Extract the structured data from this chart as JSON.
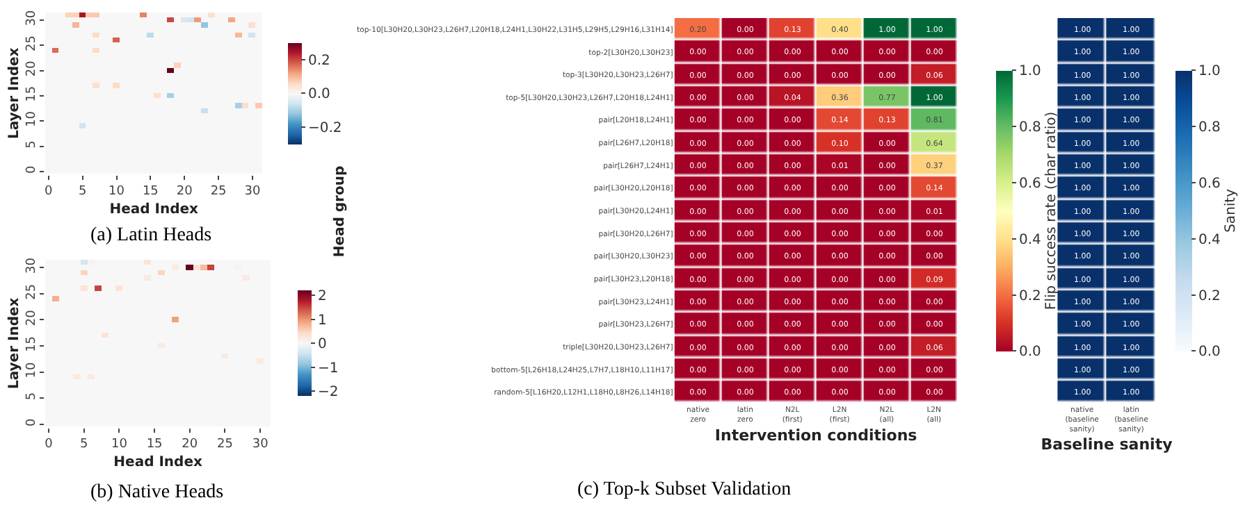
{
  "chart_data": [
    {
      "type": "heatmap",
      "title": "(a) Latin Heads",
      "xlabel": "Head Index",
      "ylabel": "Layer Index",
      "categories": [
        "0",
        null,
        null,
        null,
        null,
        "5",
        null,
        null,
        null,
        null,
        "10",
        null,
        null,
        null,
        null,
        "15",
        null,
        null,
        null,
        null,
        "20",
        null,
        null,
        null,
        null,
        "25",
        null,
        null,
        null,
        null,
        "30",
        null
      ],
      "y_categories": [
        null,
        "30",
        null,
        null,
        null,
        null,
        "25",
        null,
        null,
        null,
        null,
        "20",
        null,
        null,
        null,
        null,
        "15",
        null,
        null,
        null,
        null,
        "10",
        null,
        null,
        null,
        null,
        "5",
        null,
        null,
        null,
        null,
        "0"
      ],
      "clim": [
        -0.3,
        0.3
      ],
      "cticks": [
        {
          "value": -0.2,
          "label": "−0.2"
        },
        {
          "value": 0,
          "label": "0.0"
        },
        {
          "value": 0.2,
          "label": "0.2"
        }
      ],
      "cells": [
        [
          0,
          0,
          0,
          0.07,
          0.07,
          0.25,
          0.08,
          0.08,
          0,
          0,
          0,
          0,
          0,
          0,
          0.15,
          0,
          0,
          0,
          0,
          0,
          0,
          0,
          0,
          0,
          0.05,
          0,
          0,
          0,
          0,
          0,
          0,
          0
        ],
        [
          0,
          0,
          0,
          0,
          0,
          0,
          0,
          0,
          0,
          0,
          0,
          0,
          0,
          0,
          0,
          0,
          0,
          0,
          0.2,
          0,
          -0.05,
          -0.06,
          0.13,
          0,
          0,
          0,
          0,
          0.12,
          0,
          0,
          0,
          0
        ],
        [
          0,
          0,
          0,
          0,
          0.1,
          0,
          0,
          0,
          0,
          0,
          0,
          0,
          0,
          0,
          0,
          0,
          0,
          0,
          0,
          0,
          0,
          0,
          0,
          -0.12,
          0,
          0,
          0,
          0,
          0,
          0,
          0.05,
          0
        ],
        [
          0,
          0,
          0,
          0,
          0,
          0,
          0,
          0,
          0,
          0,
          0,
          0,
          0,
          0,
          0,
          0,
          0,
          0,
          0,
          0,
          0,
          0,
          0,
          0,
          0,
          0,
          0,
          0,
          0,
          0,
          0,
          0
        ],
        [
          0,
          0,
          0,
          0,
          0,
          0,
          0,
          0.06,
          0,
          0,
          0,
          0,
          0,
          0,
          0,
          -0.08,
          0,
          0,
          0,
          0,
          0,
          0,
          0,
          0,
          0,
          0,
          0,
          0,
          0.1,
          0,
          -0.06,
          0
        ],
        [
          0,
          0,
          0,
          0,
          0,
          0,
          0,
          0,
          0,
          0,
          0.18,
          0,
          0,
          0,
          0,
          0,
          0,
          0,
          0,
          0,
          0,
          0,
          0,
          0,
          0,
          0,
          0,
          0,
          0,
          0,
          0,
          0
        ],
        [
          0,
          0,
          0,
          0,
          0,
          0,
          0,
          0,
          0,
          0,
          0,
          0,
          0,
          0,
          0,
          0,
          0,
          0,
          0,
          0,
          0,
          0,
          0,
          0,
          0,
          0,
          0,
          0,
          0,
          0,
          0,
          0
        ],
        [
          0,
          0.17,
          0,
          0,
          0,
          0,
          0,
          0.06,
          0,
          0,
          0,
          0,
          0,
          0,
          0,
          0,
          0,
          0,
          0,
          0,
          0,
          0,
          0,
          0,
          0,
          0,
          0,
          0,
          0,
          0,
          0,
          0
        ],
        [
          0,
          0,
          0,
          0,
          0,
          0,
          0,
          0,
          0,
          0,
          0,
          0,
          0,
          0,
          0,
          0,
          0,
          0,
          0,
          0,
          0,
          0,
          0,
          0,
          0,
          0,
          0,
          0,
          0,
          0,
          0,
          0
        ],
        [
          0,
          0,
          0,
          0,
          0,
          0,
          0,
          0,
          0,
          0,
          0,
          0,
          0,
          0,
          0,
          0,
          0,
          0,
          0,
          0,
          0,
          0,
          0,
          0,
          0,
          0,
          0,
          0,
          0,
          0,
          0,
          0
        ],
        [
          0,
          0,
          0,
          0,
          0,
          0,
          0,
          0,
          0,
          0,
          0,
          0,
          0,
          0,
          0,
          0,
          0,
          0,
          0,
          0.07,
          0,
          0,
          0,
          0,
          0,
          0,
          0,
          0,
          0,
          0,
          0,
          0
        ],
        [
          0,
          0,
          0,
          0,
          0,
          0,
          0,
          0,
          0,
          0,
          0,
          0,
          0,
          0,
          0,
          0,
          0,
          0,
          0.3,
          0,
          0,
          0,
          0,
          0,
          0,
          0,
          0,
          0,
          0,
          0,
          0,
          0
        ],
        [
          0,
          0,
          0,
          0,
          0,
          0,
          0,
          0,
          0,
          0,
          0,
          0,
          0,
          0,
          0,
          0,
          0,
          0,
          0,
          0,
          0,
          0,
          0,
          0,
          0,
          0,
          0,
          0,
          0,
          0,
          0,
          0
        ],
        [
          0,
          0,
          0,
          0,
          0,
          0,
          0,
          0,
          0,
          0,
          0,
          0,
          0,
          0,
          0,
          0,
          0,
          0,
          0,
          0,
          0,
          0,
          0,
          0,
          0,
          0,
          0,
          0,
          0,
          0,
          0,
          0
        ],
        [
          0,
          0,
          0,
          0,
          0,
          0,
          0,
          0.05,
          0,
          0,
          0.06,
          0,
          0,
          0,
          0,
          0,
          0,
          0,
          0,
          0,
          0,
          0,
          0,
          0,
          0,
          0,
          0,
          0,
          0,
          0,
          0,
          0
        ],
        [
          0,
          0,
          0,
          0,
          0,
          0,
          0,
          0,
          0,
          0,
          0,
          0,
          0,
          0,
          0,
          0,
          0,
          0,
          0,
          0,
          0,
          0,
          0,
          0,
          0,
          0,
          0,
          0,
          0,
          0,
          0,
          0
        ],
        [
          0,
          0,
          0,
          0,
          0,
          0,
          0,
          0,
          0,
          0,
          0,
          0,
          0,
          0,
          0,
          0,
          0.05,
          0,
          -0.1,
          0,
          0,
          0,
          0,
          0,
          0,
          0,
          0,
          0,
          0,
          0,
          0,
          0
        ],
        [
          0,
          0,
          0,
          0,
          0,
          0,
          0,
          0,
          0,
          0,
          0,
          0,
          0,
          0,
          0,
          0,
          0,
          0,
          0,
          0,
          0,
          0,
          0,
          0,
          0,
          0,
          0,
          0,
          0,
          0,
          0,
          0
        ],
        [
          0,
          0,
          0,
          0,
          0,
          0,
          0,
          0,
          0,
          0,
          0,
          0,
          0,
          0,
          0,
          0,
          0,
          0,
          0,
          0,
          0,
          0,
          0,
          0,
          0,
          0,
          0,
          0,
          -0.1,
          0.05,
          0,
          0.08
        ],
        [
          0,
          0,
          0,
          0,
          0,
          0,
          0,
          0,
          0,
          0,
          0,
          0,
          0,
          0,
          0,
          0,
          0,
          0,
          0,
          0,
          0,
          0,
          0,
          -0.07,
          0,
          0,
          0,
          0,
          0,
          0,
          0,
          0
        ],
        [
          0,
          0,
          0,
          0,
          0,
          0,
          0,
          0,
          0,
          0,
          0,
          0,
          0,
          0,
          0,
          0,
          0,
          0,
          0,
          0,
          0,
          0,
          0,
          0,
          0,
          0,
          0,
          0,
          0,
          0,
          0,
          0
        ],
        [
          0,
          0,
          0,
          0,
          0,
          0,
          0,
          0,
          0,
          0,
          0,
          0,
          0,
          0,
          0,
          0,
          0,
          0,
          0,
          0,
          0,
          0,
          0,
          0,
          0,
          0,
          0,
          0,
          0,
          0,
          0,
          0
        ],
        [
          0,
          0,
          0,
          0,
          0,
          -0.06,
          0,
          0,
          0,
          0,
          0,
          0,
          0,
          0,
          0,
          0,
          0,
          0,
          0,
          0,
          0,
          0,
          0,
          0,
          0,
          0,
          0,
          0,
          0,
          0,
          0,
          0
        ],
        [
          0,
          0,
          0,
          0,
          0,
          0,
          0,
          0,
          0,
          0,
          0,
          0,
          0,
          0,
          0,
          0,
          0,
          0,
          0,
          0,
          0,
          0,
          0,
          0,
          0,
          0,
          0,
          0,
          0,
          0,
          0,
          0
        ],
        [
          0,
          0,
          0,
          0,
          0,
          0,
          0,
          0,
          0,
          0,
          0,
          0,
          0,
          0,
          0,
          0,
          0,
          0,
          0,
          0,
          0,
          0,
          0,
          0,
          0,
          0,
          0,
          0,
          0,
          0,
          0,
          0
        ],
        [
          0,
          0,
          0,
          0,
          0,
          0,
          0,
          0,
          0,
          0,
          0,
          0,
          0,
          0,
          0,
          0,
          0,
          0,
          0,
          0,
          0,
          0,
          0,
          0,
          0,
          0,
          0,
          0,
          0,
          0,
          0,
          0
        ],
        [
          0,
          0,
          0,
          0,
          0,
          0,
          0,
          0,
          0,
          0,
          0,
          0,
          0,
          0,
          0,
          0,
          0,
          0,
          0,
          0,
          0,
          0,
          0,
          0,
          0,
          0,
          0,
          0,
          0,
          0,
          0,
          0
        ],
        [
          0,
          0,
          0,
          0,
          0,
          0,
          0,
          0,
          0,
          0,
          0,
          0,
          0,
          0,
          0,
          0,
          0,
          0,
          0,
          0,
          0,
          0,
          0,
          0,
          0,
          0,
          0,
          0,
          0,
          0,
          0,
          0
        ],
        [
          0,
          0,
          0,
          0,
          0,
          0,
          0,
          0,
          0,
          0,
          0,
          0,
          0,
          0,
          0,
          0,
          0,
          0,
          0,
          0,
          0,
          0,
          0,
          0,
          0,
          0,
          0,
          0,
          0,
          0,
          0,
          0
        ],
        [
          0,
          0,
          0,
          0,
          0,
          0,
          0,
          0,
          0,
          0,
          0,
          0,
          0,
          0,
          0,
          0,
          0,
          0,
          0,
          0,
          0,
          0,
          0,
          0,
          0,
          0,
          0,
          0,
          0,
          0,
          0,
          0
        ],
        [
          0,
          0,
          0,
          0,
          0,
          0,
          0,
          0,
          0,
          0,
          0,
          0,
          0,
          0,
          0,
          0,
          0,
          0,
          0,
          0,
          0,
          0,
          0,
          0,
          0,
          0,
          0,
          0,
          0,
          0,
          0,
          0
        ],
        [
          0,
          0,
          0,
          0,
          0,
          0,
          0,
          0,
          0,
          0,
          0,
          0,
          0,
          0,
          0,
          0,
          0,
          0,
          0,
          0,
          0,
          0,
          0,
          0,
          0,
          0,
          0,
          0,
          0,
          0,
          0,
          0
        ]
      ]
    },
    {
      "type": "heatmap",
      "title": "(b) Native Heads",
      "xlabel": "Head Index",
      "ylabel": "Layer Index",
      "categories": [
        "0",
        null,
        null,
        null,
        null,
        "5",
        null,
        null,
        null,
        null,
        "10",
        null,
        null,
        null,
        null,
        "15",
        null,
        null,
        null,
        null,
        "20",
        null,
        null,
        null,
        null,
        "25",
        null,
        null,
        null,
        null,
        "30",
        null
      ],
      "y_categories": [
        null,
        "30",
        null,
        null,
        null,
        null,
        "25",
        null,
        null,
        null,
        null,
        "20",
        null,
        null,
        null,
        null,
        "15",
        null,
        null,
        null,
        null,
        "10",
        null,
        null,
        null,
        null,
        "5",
        null,
        null,
        null,
        null,
        "0"
      ],
      "clim": [
        -2.2,
        2.2
      ],
      "cticks": [
        {
          "value": -2,
          "label": "−2"
        },
        {
          "value": -1,
          "label": "−1"
        },
        0,
        1,
        2
      ],
      "cells": [
        [
          0,
          0,
          0,
          0,
          0,
          -0.4,
          0.1,
          0,
          0,
          0,
          0,
          0,
          0,
          0,
          0.3,
          0,
          0,
          0,
          0,
          0,
          0,
          0,
          0,
          0,
          0,
          0,
          0,
          0,
          0,
          0,
          0,
          0
        ],
        [
          0,
          0,
          0,
          0,
          0,
          0,
          0,
          0,
          0,
          0,
          0,
          0,
          0,
          0,
          0,
          0,
          0,
          0,
          0.2,
          0,
          2.2,
          0.3,
          0.7,
          1.5,
          0,
          0,
          0,
          0.1,
          0,
          0,
          0,
          0
        ],
        [
          0,
          0,
          0,
          0,
          0,
          0.5,
          0,
          0,
          0,
          0,
          0,
          0,
          0,
          0,
          0,
          0,
          0.5,
          0,
          0,
          0,
          0,
          0,
          0,
          0,
          0,
          0,
          0,
          0,
          0,
          0,
          0,
          0
        ],
        [
          0,
          0,
          0,
          0,
          0,
          0,
          0,
          0,
          0,
          0,
          0,
          0,
          0,
          0,
          0.2,
          0,
          0,
          0,
          0,
          0,
          0,
          0,
          0,
          0,
          0,
          0,
          0,
          0,
          0.2,
          0,
          0,
          0
        ],
        [
          0,
          0,
          0,
          0,
          0,
          0,
          0,
          0,
          0,
          0,
          0,
          0,
          0,
          0,
          0,
          0,
          0,
          0,
          0,
          0,
          0,
          0,
          0,
          0,
          0,
          0,
          0,
          0,
          0,
          0,
          0,
          0
        ],
        [
          0,
          0,
          0,
          0,
          0,
          0.3,
          0,
          1.5,
          0,
          0,
          0.3,
          0,
          0,
          0,
          0,
          0,
          0,
          0,
          0,
          0,
          0,
          0,
          0,
          0,
          0,
          0,
          0,
          0,
          0,
          0,
          0,
          0
        ],
        [
          0,
          0,
          0,
          0,
          0,
          0,
          0,
          0,
          0,
          0,
          0,
          0,
          0,
          0,
          0,
          0,
          0,
          0,
          0,
          0,
          0,
          0,
          0,
          0,
          0,
          0,
          0,
          0,
          0,
          0,
          0,
          0
        ],
        [
          0,
          0.8,
          0,
          0,
          0,
          0,
          0,
          0,
          0,
          0,
          0,
          0,
          0,
          0,
          0,
          0,
          0,
          0,
          0,
          0,
          0,
          0,
          0,
          0,
          0,
          0,
          0,
          0,
          0,
          0,
          0,
          0
        ],
        [
          0,
          0,
          0,
          0,
          0,
          0,
          0,
          0,
          0,
          0,
          0,
          0,
          0,
          0,
          0,
          0,
          0,
          0,
          0,
          0,
          0,
          0,
          0,
          0,
          0,
          0,
          0,
          0,
          0,
          0,
          0,
          0
        ],
        [
          0,
          0,
          0,
          0,
          0,
          0,
          0,
          0,
          0,
          0,
          0,
          0,
          0,
          0,
          0,
          0,
          0,
          0,
          0,
          0,
          0,
          0,
          0,
          0,
          0,
          0,
          0,
          0,
          0,
          0,
          0,
          0
        ],
        [
          0,
          0,
          0,
          0,
          0,
          0,
          0,
          0,
          0,
          0,
          0,
          0,
          0,
          0,
          0,
          0,
          0,
          0,
          0,
          0,
          0,
          0,
          0,
          0,
          0,
          0,
          0,
          0,
          0,
          0,
          0,
          0
        ],
        [
          0,
          0,
          0,
          0,
          0,
          0,
          0,
          0,
          0,
          0,
          0,
          0,
          0,
          0,
          0,
          0,
          0,
          0,
          0.9,
          0,
          0,
          0,
          0,
          0,
          0,
          0,
          0,
          0,
          0,
          0,
          0,
          0
        ],
        [
          0,
          0,
          0,
          0,
          0,
          0,
          0,
          0,
          0,
          0,
          0,
          0,
          0,
          0,
          0,
          0,
          0,
          0,
          0,
          0,
          0,
          0,
          0,
          0,
          0,
          0,
          0,
          0,
          0,
          0,
          0,
          0
        ],
        [
          0,
          0,
          0,
          0,
          0,
          0,
          0,
          0,
          0,
          0,
          0,
          0,
          0,
          0,
          0,
          0,
          0,
          0,
          0,
          0,
          0,
          0,
          0,
          0,
          0,
          0,
          0,
          0,
          0,
          0,
          0,
          0
        ],
        [
          0,
          0,
          0,
          0,
          0,
          0,
          0,
          0,
          0.3,
          0,
          0,
          0,
          0,
          0,
          0,
          0,
          0,
          0,
          0,
          0,
          0,
          0,
          0,
          0,
          0,
          0,
          0,
          0,
          0,
          0,
          0,
          0
        ],
        [
          0,
          0,
          0,
          0,
          0,
          0,
          0,
          0,
          0,
          0,
          0,
          0,
          0,
          0,
          0,
          0,
          0,
          0,
          0,
          0,
          0,
          0,
          0,
          0,
          0,
          0,
          0,
          0,
          0,
          0,
          0,
          0
        ],
        [
          0,
          0,
          0,
          0,
          0,
          0,
          0,
          0,
          0,
          0,
          0,
          0,
          0,
          0,
          0,
          0,
          0.2,
          0,
          0,
          0,
          0,
          0,
          0,
          0,
          0,
          0,
          0,
          0,
          0,
          0,
          0,
          0
        ],
        [
          0,
          0,
          0,
          0,
          0,
          0,
          0,
          0,
          0,
          0,
          0,
          0,
          0,
          0,
          0,
          0,
          0,
          0,
          0,
          0,
          0,
          0,
          0,
          0,
          0,
          0,
          0,
          0,
          0,
          0,
          0,
          0
        ],
        [
          0,
          0,
          0,
          0,
          0,
          0,
          0,
          0,
          0,
          0,
          0,
          0,
          0,
          0,
          0,
          0,
          0,
          0,
          0,
          0,
          0,
          0,
          0,
          0,
          0,
          0.2,
          0,
          0,
          0,
          0,
          0,
          0
        ],
        [
          0,
          0,
          0,
          0,
          0,
          0,
          0,
          0,
          0,
          0,
          0,
          0,
          0,
          0,
          0,
          0,
          0,
          0,
          0,
          0,
          0,
          0,
          0,
          0,
          0,
          0,
          0,
          0,
          0,
          0,
          0.2,
          0
        ],
        [
          0,
          0,
          0,
          0,
          0,
          0,
          0,
          0,
          0,
          0,
          0,
          0,
          0,
          0,
          0,
          0,
          0,
          0,
          0,
          0,
          0,
          0,
          0,
          0,
          0,
          0,
          0,
          0,
          0,
          0,
          0,
          0
        ],
        [
          0,
          0,
          0,
          0,
          0,
          0,
          0,
          0,
          0,
          0,
          0,
          0,
          0,
          0,
          0,
          0,
          0,
          0,
          0,
          0,
          0,
          0,
          0,
          0,
          0,
          0,
          0,
          0,
          0,
          0,
          0,
          0
        ],
        [
          0,
          0,
          0,
          0,
          0.2,
          0,
          0.2,
          0,
          0,
          0,
          0,
          0,
          0,
          0,
          0,
          0,
          0,
          0,
          0,
          0,
          0,
          0,
          0,
          0,
          0,
          0,
          0,
          0,
          0,
          0,
          0,
          0
        ],
        [
          0,
          0,
          0,
          0,
          0,
          0,
          0,
          0,
          0,
          0,
          0,
          0,
          0,
          0,
          0,
          0,
          0,
          0,
          0,
          0,
          0,
          0,
          0,
          0,
          0,
          0,
          0,
          0,
          0,
          0,
          0,
          0
        ],
        [
          0,
          0,
          0,
          0,
          0,
          0,
          0,
          0,
          0,
          0,
          0,
          0,
          0,
          0,
          0,
          0,
          0,
          0,
          0,
          0,
          0,
          0,
          0,
          0,
          0,
          0,
          0,
          0,
          0,
          0,
          0,
          0
        ],
        [
          0,
          0,
          0,
          0,
          0,
          0,
          0,
          0,
          0,
          0,
          0,
          0,
          0,
          0,
          0,
          0,
          0,
          0,
          0,
          0,
          0,
          0,
          0,
          0,
          0,
          0,
          0,
          0,
          0,
          0,
          0,
          0
        ],
        [
          0,
          0,
          0,
          0,
          0,
          0,
          0,
          0,
          0,
          0,
          0,
          0,
          0,
          0,
          0,
          0,
          0,
          0,
          0,
          0,
          0,
          0,
          0,
          0,
          0,
          0,
          0,
          0,
          0,
          0,
          0,
          0
        ],
        [
          0,
          0,
          0,
          0,
          0,
          0,
          0,
          0,
          0,
          0,
          0,
          0,
          0,
          0,
          0,
          0,
          0,
          0,
          0,
          0,
          0,
          0,
          0,
          0,
          0,
          0,
          0,
          0,
          0,
          0,
          0,
          0
        ],
        [
          0,
          0,
          0,
          0,
          0,
          0,
          0,
          0,
          0,
          0,
          0,
          0,
          0,
          0,
          0,
          0,
          0,
          0,
          0,
          0,
          0,
          0,
          0,
          0,
          0,
          0,
          0,
          0,
          0,
          0,
          0,
          0
        ],
        [
          0,
          0,
          0,
          0,
          0,
          0,
          0,
          0,
          0,
          0,
          0,
          0,
          0,
          0,
          0,
          0,
          0,
          0,
          0,
          0,
          0,
          0,
          0,
          0,
          0,
          0,
          0,
          0,
          0,
          0,
          0,
          0
        ],
        [
          0,
          0,
          0,
          0,
          0,
          0,
          0,
          0,
          0,
          0,
          0,
          0,
          0,
          0,
          0,
          0,
          0,
          0,
          0,
          0,
          0,
          0,
          0,
          0,
          0,
          0,
          0,
          0,
          0,
          0,
          0,
          0
        ],
        [
          0,
          0,
          0,
          0,
          0,
          0,
          0,
          0,
          0,
          0,
          0,
          0,
          0,
          0,
          0,
          0,
          0,
          0,
          0,
          0,
          0,
          0,
          0,
          0,
          0,
          0,
          0,
          0,
          0,
          0,
          0,
          0
        ]
      ]
    },
    {
      "type": "heatmap",
      "title": "(c) Top-k Subset Validation",
      "xlabel": "Intervention conditions",
      "ylabel": "Head group",
      "clabel": "Flip success rate (char ratio)",
      "categories": [
        "native zero",
        "latin zero",
        "N2L (first)",
        "L2N (first)",
        "N2L (all)",
        "L2N (all)"
      ],
      "y_categories": [
        "top-10[L30H20,L30H23,L26H7,L20H18,L24H1,L30H22,L31H5,L29H5,L29H16,L31H14]",
        "top-2[L30H20,L30H23]",
        "top-3[L30H20,L30H23,L26H7]",
        "top-5[L30H20,L30H23,L26H7,L20H18,L24H1]",
        "pair[L20H18,L24H1]",
        "pair[L26H7,L20H18]",
        "pair[L26H7,L24H1]",
        "pair[L30H20,L20H18]",
        "pair[L30H20,L24H1]",
        "pair[L30H20,L26H7]",
        "pair[L30H20,L30H23]",
        "pair[L30H23,L20H18]",
        "pair[L30H23,L24H1]",
        "pair[L30H23,L26H7]",
        "triple[L30H20,L30H23,L26H7]",
        "bottom-5[L26H18,L24H25,L7H7,L18H10,L11H17]",
        "random-5[L16H20,L12H1,L18H0,L8H26,L14H18]"
      ],
      "clim": [
        0,
        1
      ],
      "cticks": [
        {
          "value": 0,
          "label": "0.0"
        },
        0.2,
        0.4,
        0.6,
        0.8,
        {
          "value": 1,
          "label": "1.0"
        }
      ],
      "cell_labels": [
        [
          "0.20",
          "0.00",
          "0.13",
          "0.40",
          "1.00",
          "1.00"
        ],
        [
          "0.00",
          "0.00",
          "0.00",
          "0.00",
          "0.00",
          "0.00"
        ],
        [
          "0.00",
          "0.00",
          "0.00",
          "0.00",
          "0.00",
          "0.06"
        ],
        [
          "0.00",
          "0.00",
          "0.04",
          "0.36",
          "0.77",
          "1.00"
        ],
        [
          "0.00",
          "0.00",
          "0.00",
          "0.14",
          "0.13",
          "0.81"
        ],
        [
          "0.00",
          "0.00",
          "0.00",
          "0.10",
          "0.00",
          "0.64"
        ],
        [
          "0.00",
          "0.00",
          "0.00",
          "0.01",
          "0.00",
          "0.37"
        ],
        [
          "0.00",
          "0.00",
          "0.00",
          "0.00",
          "0.00",
          "0.14"
        ],
        [
          "0.00",
          "0.00",
          "0.00",
          "0.00",
          "0.00",
          "0.01"
        ],
        [
          "0.00",
          "0.00",
          "0.00",
          "0.00",
          "0.00",
          "0.00"
        ],
        [
          "0.00",
          "0.00",
          "0.00",
          "0.00",
          "0.00",
          "0.00"
        ],
        [
          "0.00",
          "0.00",
          "0.00",
          "0.00",
          "0.00",
          "0.09"
        ],
        [
          "0.00",
          "0.00",
          "0.00",
          "0.00",
          "0.00",
          "0.00"
        ],
        [
          "0.00",
          "0.00",
          "0.00",
          "0.00",
          "0.00",
          "0.00"
        ],
        [
          "0.00",
          "0.00",
          "0.00",
          "0.00",
          "0.00",
          "0.06"
        ],
        [
          "0.00",
          "0.00",
          "0.00",
          "0.00",
          "0.00",
          "0.00"
        ],
        [
          "0.00",
          "0.00",
          "0.00",
          "0.00",
          "0.00",
          "0.00"
        ]
      ],
      "cells": [
        [
          0.2,
          0,
          0.13,
          0.4,
          1,
          1
        ],
        [
          0,
          0,
          0,
          0,
          0,
          0
        ],
        [
          0,
          0,
          0,
          0,
          0,
          0.06
        ],
        [
          0,
          0,
          0.04,
          0.36,
          0.77,
          1
        ],
        [
          0,
          0,
          0,
          0.14,
          0.13,
          0.81
        ],
        [
          0,
          0,
          0,
          0.1,
          0,
          0.64
        ],
        [
          0,
          0,
          0,
          0.01,
          0,
          0.37
        ],
        [
          0,
          0,
          0,
          0,
          0,
          0.14
        ],
        [
          0,
          0,
          0,
          0,
          0,
          0.01
        ],
        [
          0,
          0,
          0,
          0,
          0,
          0
        ],
        [
          0,
          0,
          0,
          0,
          0,
          0
        ],
        [
          0,
          0,
          0,
          0,
          0,
          0.09
        ],
        [
          0,
          0,
          0,
          0,
          0,
          0
        ],
        [
          0,
          0,
          0,
          0,
          0,
          0
        ],
        [
          0,
          0,
          0,
          0,
          0,
          0.06
        ],
        [
          0,
          0,
          0,
          0,
          0,
          0
        ],
        [
          0,
          0,
          0,
          0,
          0,
          0
        ]
      ]
    },
    {
      "type": "heatmap",
      "xlabel": "Baseline sanity",
      "clabel": "Sanity",
      "tick_labels": "x",
      "categories": [
        "native (baseline sanity)",
        "latin (baseline sanity)"
      ],
      "y_categories": [
        null,
        null,
        null,
        null,
        null,
        null,
        null,
        null,
        null,
        null,
        null,
        null,
        null,
        null,
        null,
        null,
        null
      ],
      "clim": [
        0,
        1
      ],
      "cticks": [
        {
          "value": 0,
          "label": "0.0"
        },
        0.2,
        0.4,
        0.6,
        0.8,
        {
          "value": 1,
          "label": "1.0"
        }
      ],
      "cell_labels": [
        [
          "1.00",
          "1.00"
        ],
        [
          "1.00",
          "1.00"
        ],
        [
          "1.00",
          "1.00"
        ],
        [
          "1.00",
          "1.00"
        ],
        [
          "1.00",
          "1.00"
        ],
        [
          "1.00",
          "1.00"
        ],
        [
          "1.00",
          "1.00"
        ],
        [
          "1.00",
          "1.00"
        ],
        [
          "1.00",
          "1.00"
        ],
        [
          "1.00",
          "1.00"
        ],
        [
          "1.00",
          "1.00"
        ],
        [
          "1.00",
          "1.00"
        ],
        [
          "1.00",
          "1.00"
        ],
        [
          "1.00",
          "1.00"
        ],
        [
          "1.00",
          "1.00"
        ],
        [
          "1.00",
          "1.00"
        ],
        [
          "1.00",
          "1.00"
        ]
      ],
      "cells": [
        [
          1,
          1
        ],
        [
          1,
          1
        ],
        [
          1,
          1
        ],
        [
          1,
          1
        ],
        [
          1,
          1
        ],
        [
          1,
          1
        ],
        [
          1,
          1
        ],
        [
          1,
          1
        ],
        [
          1,
          1
        ],
        [
          1,
          1
        ],
        [
          1,
          1
        ],
        [
          1,
          1
        ],
        [
          1,
          1
        ],
        [
          1,
          1
        ],
        [
          1,
          1
        ],
        [
          1,
          1
        ],
        [
          1,
          1
        ]
      ]
    }
  ]
}
